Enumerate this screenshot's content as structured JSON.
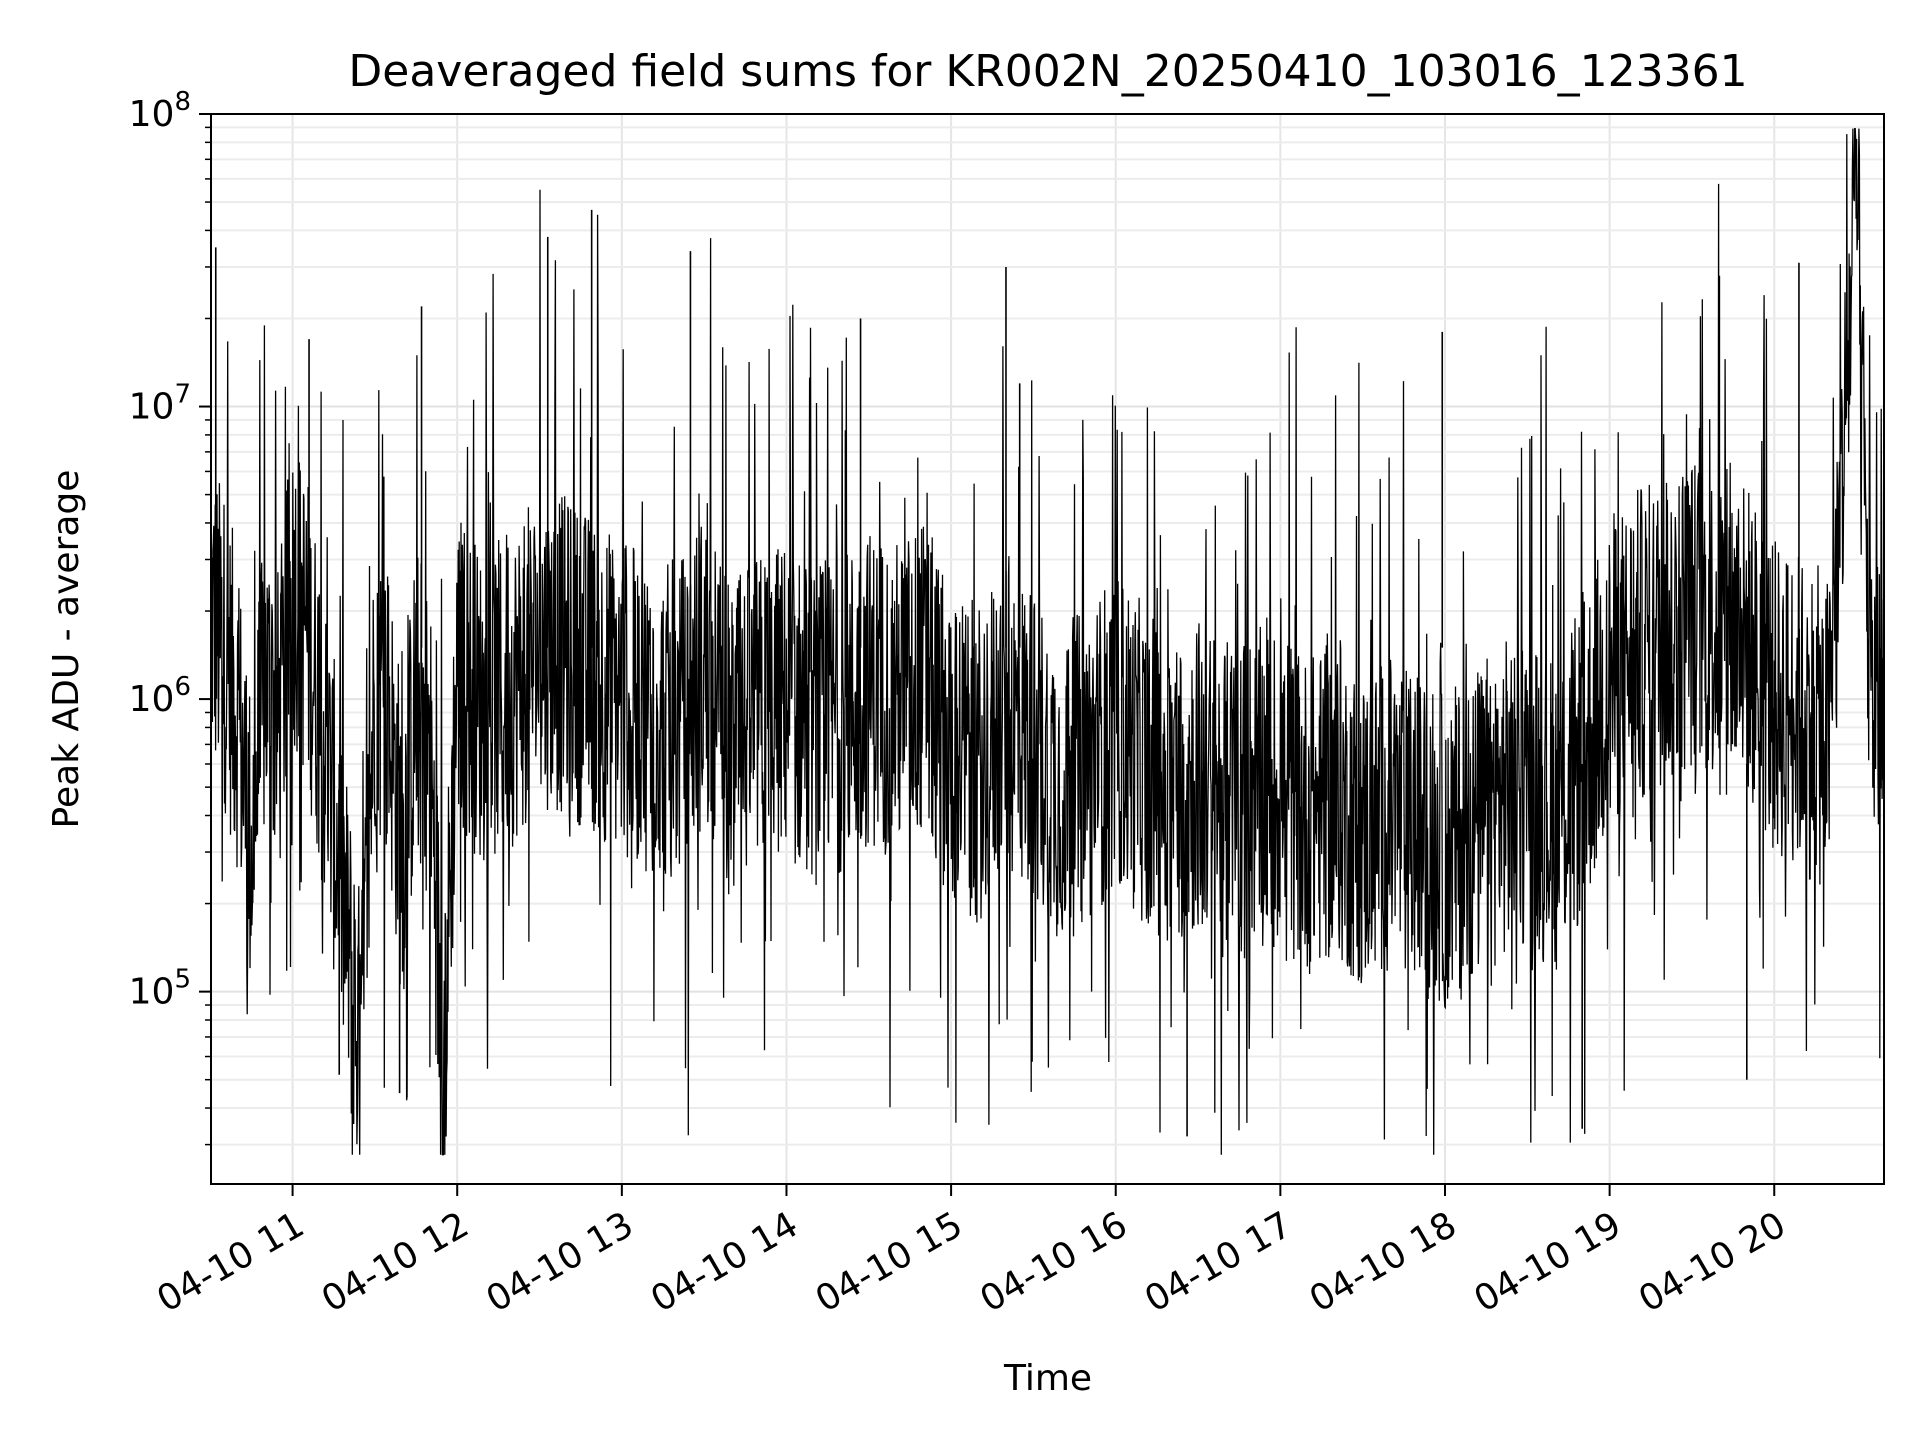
{
  "chart_data": {
    "type": "line",
    "title": "Deaveraged field sums for KR002N_20250410_103016_123361",
    "xlabel": "Time",
    "ylabel": "Peak ADU - average",
    "yscale": "log",
    "ylim": [
      22000,
      100000000
    ],
    "xlim": [
      "2025-04-10 10:30:16",
      "2025-04-10 20:40:00"
    ],
    "grid": true,
    "line_color": "#000000",
    "x_ticks": [
      {
        "value": "2025-04-10 11:00",
        "label": "04-10 11"
      },
      {
        "value": "2025-04-10 12:00",
        "label": "04-10 12"
      },
      {
        "value": "2025-04-10 13:00",
        "label": "04-10 13"
      },
      {
        "value": "2025-04-10 14:00",
        "label": "04-10 14"
      },
      {
        "value": "2025-04-10 15:00",
        "label": "04-10 15"
      },
      {
        "value": "2025-04-10 16:00",
        "label": "04-10 16"
      },
      {
        "value": "2025-04-10 17:00",
        "label": "04-10 17"
      },
      {
        "value": "2025-04-10 18:00",
        "label": "04-10 18"
      },
      {
        "value": "2025-04-10 19:00",
        "label": "04-10 19"
      },
      {
        "value": "2025-04-10 20:00",
        "label": "04-10 20"
      }
    ],
    "y_ticks": [
      {
        "value": 100000,
        "base": "10",
        "exp": "5"
      },
      {
        "value": 1000000,
        "base": "10",
        "exp": "6"
      },
      {
        "value": 10000000,
        "base": "10",
        "exp": "7"
      },
      {
        "value": 100000000,
        "base": "10",
        "exp": "8"
      }
    ],
    "series": [
      {
        "x": [
          "2025-04-10 10:30",
          "2025-04-10 10:35",
          "2025-04-10 10:40",
          "2025-04-10 10:45",
          "2025-04-10 10:50",
          "2025-04-10 10:55",
          "2025-04-10 11:00",
          "2025-04-10 11:05",
          "2025-04-10 11:10",
          "2025-04-10 11:15",
          "2025-04-10 11:20",
          "2025-04-10 11:25",
          "2025-04-10 11:30",
          "2025-04-10 11:35",
          "2025-04-10 11:40",
          "2025-04-10 11:45",
          "2025-04-10 11:50",
          "2025-04-10 11:55",
          "2025-04-10 12:00",
          "2025-04-10 12:10",
          "2025-04-10 12:20",
          "2025-04-10 12:30",
          "2025-04-10 12:40",
          "2025-04-10 12:50",
          "2025-04-10 13:00",
          "2025-04-10 13:10",
          "2025-04-10 13:20",
          "2025-04-10 13:30",
          "2025-04-10 13:40",
          "2025-04-10 13:50",
          "2025-04-10 14:00",
          "2025-04-10 14:10",
          "2025-04-10 14:20",
          "2025-04-10 14:30",
          "2025-04-10 14:40",
          "2025-04-10 14:50",
          "2025-04-10 15:00",
          "2025-04-10 15:10",
          "2025-04-10 15:20",
          "2025-04-10 15:30",
          "2025-04-10 15:40",
          "2025-04-10 15:50",
          "2025-04-10 16:00",
          "2025-04-10 16:10",
          "2025-04-10 16:20",
          "2025-04-10 16:30",
          "2025-04-10 16:40",
          "2025-04-10 16:50",
          "2025-04-10 17:00",
          "2025-04-10 17:10",
          "2025-04-10 17:20",
          "2025-04-10 17:30",
          "2025-04-10 17:40",
          "2025-04-10 17:50",
          "2025-04-10 18:00",
          "2025-04-10 18:10",
          "2025-04-10 18:20",
          "2025-04-10 18:30",
          "2025-04-10 18:40",
          "2025-04-10 18:50",
          "2025-04-10 19:00",
          "2025-04-10 19:10",
          "2025-04-10 19:20",
          "2025-04-10 19:30",
          "2025-04-10 19:40",
          "2025-04-10 19:50",
          "2025-04-10 20:00",
          "2025-04-10 20:10",
          "2025-04-10 20:20",
          "2025-04-10 20:30",
          "2025-04-10 20:35",
          "2025-04-10 20:40"
        ],
        "y": [
          2000000,
          1500000,
          900000,
          300000,
          1200000,
          800000,
          2500000,
          1800000,
          900000,
          400000,
          150000,
          60000,
          1200000,
          900000,
          300000,
          1000000,
          700000,
          50000,
          1300000,
          900000,
          1100000,
          1500000,
          1400000,
          1200000,
          1000000,
          900000,
          800000,
          1300000,
          700000,
          900000,
          1000000,
          800000,
          900000,
          1100000,
          1000000,
          1200000,
          700000,
          600000,
          900000,
          700000,
          500000,
          600000,
          800000,
          600000,
          500000,
          550000,
          450000,
          500000,
          500000,
          400000,
          450000,
          350000,
          400000,
          350000,
          300000,
          350000,
          450000,
          500000,
          400000,
          600000,
          1200000,
          1500000,
          1700000,
          2000000,
          1800000,
          1600000,
          1000000,
          900000,
          750000,
          55000000,
          1000000,
          900000
        ]
      }
    ],
    "spikes": [
      {
        "x": "2025-04-10 10:32",
        "y": 35000000
      },
      {
        "x": "2025-04-10 11:06",
        "y": 17000000
      },
      {
        "x": "2025-04-10 11:47",
        "y": 22000000
      },
      {
        "x": "2025-04-10 12:33",
        "y": 38000000
      },
      {
        "x": "2025-04-10 12:49",
        "y": 47000000
      },
      {
        "x": "2025-04-10 13:25",
        "y": 34000000
      },
      {
        "x": "2025-04-10 14:27",
        "y": 20000000
      },
      {
        "x": "2025-04-10 15:20",
        "y": 30000000
      },
      {
        "x": "2025-04-10 15:25",
        "y": 12000000
      },
      {
        "x": "2025-04-10 17:59",
        "y": 18000000
      },
      {
        "x": "2025-04-10 19:40",
        "y": 28000000
      },
      {
        "x": "2025-04-10 20:09",
        "y": 31000000
      }
    ],
    "dips": [
      {
        "x": "2025-04-10 11:17",
        "y": 52000
      },
      {
        "x": "2025-04-10 11:39",
        "y": 45000
      },
      {
        "x": "2025-04-10 16:26",
        "y": 32000
      },
      {
        "x": "2025-04-10 18:50",
        "y": 34000
      },
      {
        "x": "2025-04-10 19:50",
        "y": 50000
      }
    ]
  }
}
